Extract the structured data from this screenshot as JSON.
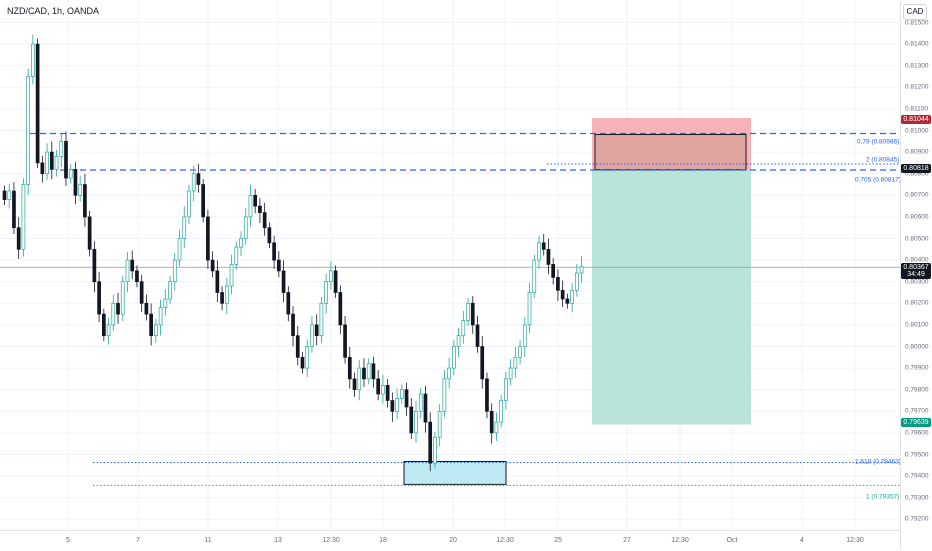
{
  "header": {
    "symbol": "NZD/CAD, 1h, OANDA"
  },
  "currency": "CAD",
  "price_axis": {
    "ticks": [
      "0.81500",
      "0.81400",
      "0.81300",
      "0.81200",
      "0.81100",
      "0.81000",
      "0.80900",
      "0.80800",
      "0.80700",
      "0.80600",
      "0.80500",
      "0.80400",
      "0.80300",
      "0.80200",
      "0.80100",
      "0.80000",
      "0.79900",
      "0.79800",
      "0.79700",
      "0.79600",
      "0.79500",
      "0.79400",
      "0.79300",
      "0.79200"
    ],
    "tick_values": [
      0.815,
      0.814,
      0.813,
      0.812,
      0.811,
      0.81,
      0.809,
      0.808,
      0.807,
      0.806,
      0.805,
      0.804,
      0.803,
      0.802,
      0.801,
      0.8,
      0.799,
      0.798,
      0.797,
      0.796,
      0.795,
      0.794,
      0.793,
      0.792
    ]
  },
  "price_tags": {
    "stop": {
      "text": "0.81044",
      "value": 0.81044,
      "color": "#b22833"
    },
    "entry": {
      "text": "0.80818",
      "value": 0.80818,
      "color": "#131722"
    },
    "last": {
      "text": "0.80367",
      "countdown": "34:49",
      "value": 0.80367,
      "color": "#131722"
    },
    "target": {
      "text": "0.79639",
      "value": 0.79639,
      "color": "#089981"
    }
  },
  "time_axis": {
    "labels": [
      "5",
      "7",
      "11",
      "13",
      "12:30",
      "18",
      "20",
      "12:30",
      "25",
      "27",
      "12:30",
      "Oct",
      "4",
      "12:30"
    ]
  },
  "fib_levels": [
    {
      "label": "0.79 (0.80986)",
      "value": 0.80986,
      "style": "dashed",
      "color": "#2962ff"
    },
    {
      "label": "2 (0.80845)",
      "value": 0.80845,
      "style": "dotted",
      "color": "#2962ff"
    },
    {
      "label": "0.705 (0.80817)",
      "value": 0.80817,
      "style": "dashed",
      "color": "#2962ff"
    },
    {
      "label": "1.618 (0.79463)",
      "value": 0.79463,
      "style": "dotted",
      "color": "#2962ff"
    },
    {
      "label": "1 (0.79357)",
      "value": 0.79357,
      "style": "dotted",
      "color": "#22ab94"
    }
  ],
  "position": {
    "entry": 0.80818,
    "stop": 0.81044,
    "target": 0.79639,
    "stop_color": "#f7b2b8",
    "target_color": "#b9e4da"
  },
  "demand_zone": {
    "top": 0.79463,
    "bottom": 0.79357,
    "color": "#bfeaf3"
  },
  "chart_data": {
    "type": "candlestick",
    "series": [
      {
        "name": "",
        "close": [
          0.8068,
          0.8072,
          0.8055,
          0.8045,
          0.8075,
          0.8125,
          0.814,
          0.8085,
          0.808,
          0.809,
          0.8082,
          0.8088,
          0.8095,
          0.8078,
          0.8082,
          0.807,
          0.8075,
          0.806,
          0.8045,
          0.803,
          0.8015,
          0.8005,
          0.801,
          0.802,
          0.8015,
          0.803,
          0.804,
          0.8035,
          0.803,
          0.802,
          0.8015,
          0.8005,
          0.801,
          0.8018,
          0.8022,
          0.803,
          0.804,
          0.805,
          0.806,
          0.8072,
          0.808,
          0.8075,
          0.806,
          0.804,
          0.8035,
          0.8025,
          0.802,
          0.8028,
          0.8038,
          0.8046,
          0.805,
          0.806,
          0.807,
          0.8065,
          0.8062,
          0.8055,
          0.8048,
          0.804,
          0.8035,
          0.8025,
          0.8015,
          0.8005,
          0.7995,
          0.799,
          0.8,
          0.801,
          0.8005,
          0.802,
          0.803,
          0.8035,
          0.8025,
          0.801,
          0.7995,
          0.7985,
          0.798,
          0.799,
          0.7985,
          0.7992,
          0.7985,
          0.7978,
          0.7982,
          0.7975,
          0.797,
          0.7976,
          0.798,
          0.7972,
          0.796,
          0.797,
          0.7978,
          0.7965,
          0.7946,
          0.7958,
          0.797,
          0.7985,
          0.799,
          0.8,
          0.8005,
          0.8012,
          0.802,
          0.801,
          0.8,
          0.7985,
          0.797,
          0.796,
          0.7965,
          0.7975,
          0.7985,
          0.799,
          0.7995,
          0.8,
          0.801,
          0.8025,
          0.804,
          0.8048,
          0.8045,
          0.8038,
          0.8032,
          0.8026,
          0.8022,
          0.802,
          0.8026,
          0.8034,
          0.8037
        ]
      }
    ],
    "ylim": [
      0.7919,
      0.8154
    ]
  }
}
